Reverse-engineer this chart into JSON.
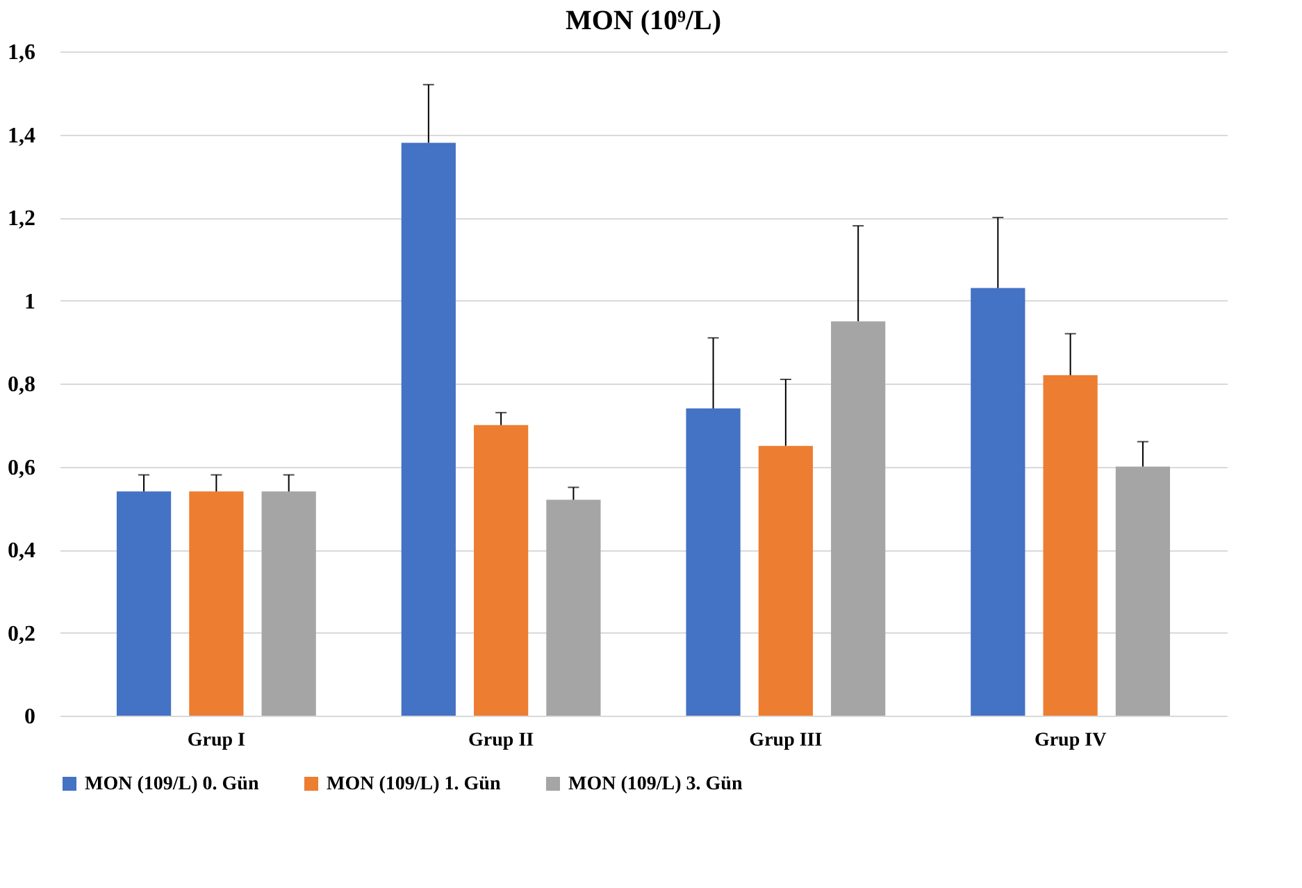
{
  "chart_data": {
    "type": "bar",
    "title": "MON (10⁹/L)",
    "categories": [
      "Grup I",
      "Grup II",
      "Grup III",
      "Grup IV"
    ],
    "series": [
      {
        "name": "MON (109/L) 0. Gün",
        "color": "#4472c4",
        "values": [
          0.54,
          1.38,
          0.74,
          1.03
        ],
        "errors": [
          [
            0.54,
            0.58
          ],
          [
            1.38,
            1.52
          ],
          [
            0.74,
            0.91
          ],
          [
            1.03,
            1.2
          ]
        ]
      },
      {
        "name": "MON (109/L) 1. Gün",
        "color": "#ed7d31",
        "values": [
          0.54,
          0.7,
          0.65,
          0.82
        ],
        "errors": [
          [
            0.54,
            0.58
          ],
          [
            0.7,
            0.73
          ],
          [
            0.65,
            0.81
          ],
          [
            0.82,
            0.92
          ]
        ]
      },
      {
        "name": "MON (109/L) 3. Gün",
        "color": "#a5a5a5",
        "values": [
          0.54,
          0.52,
          0.95,
          0.6
        ],
        "errors": [
          [
            0.54,
            0.58
          ],
          [
            0.52,
            0.55
          ],
          [
            0.95,
            1.18
          ],
          [
            0.6,
            0.66
          ]
        ]
      }
    ],
    "ylim": [
      0,
      1.6
    ],
    "yticks": [
      0,
      {
        "value": 0.2,
        "label": "0,2"
      },
      {
        "value": 0.4,
        "label": "0,4"
      },
      {
        "value": 0.6,
        "label": "0,6"
      },
      {
        "value": 0.8,
        "label": "0,8"
      },
      1,
      {
        "value": 1.2,
        "label": "1,2"
      },
      {
        "value": 1.4,
        "label": "1,4"
      },
      {
        "value": 1.6,
        "label": "1,6"
      }
    ],
    "grid": "y",
    "legend": "bottom"
  }
}
